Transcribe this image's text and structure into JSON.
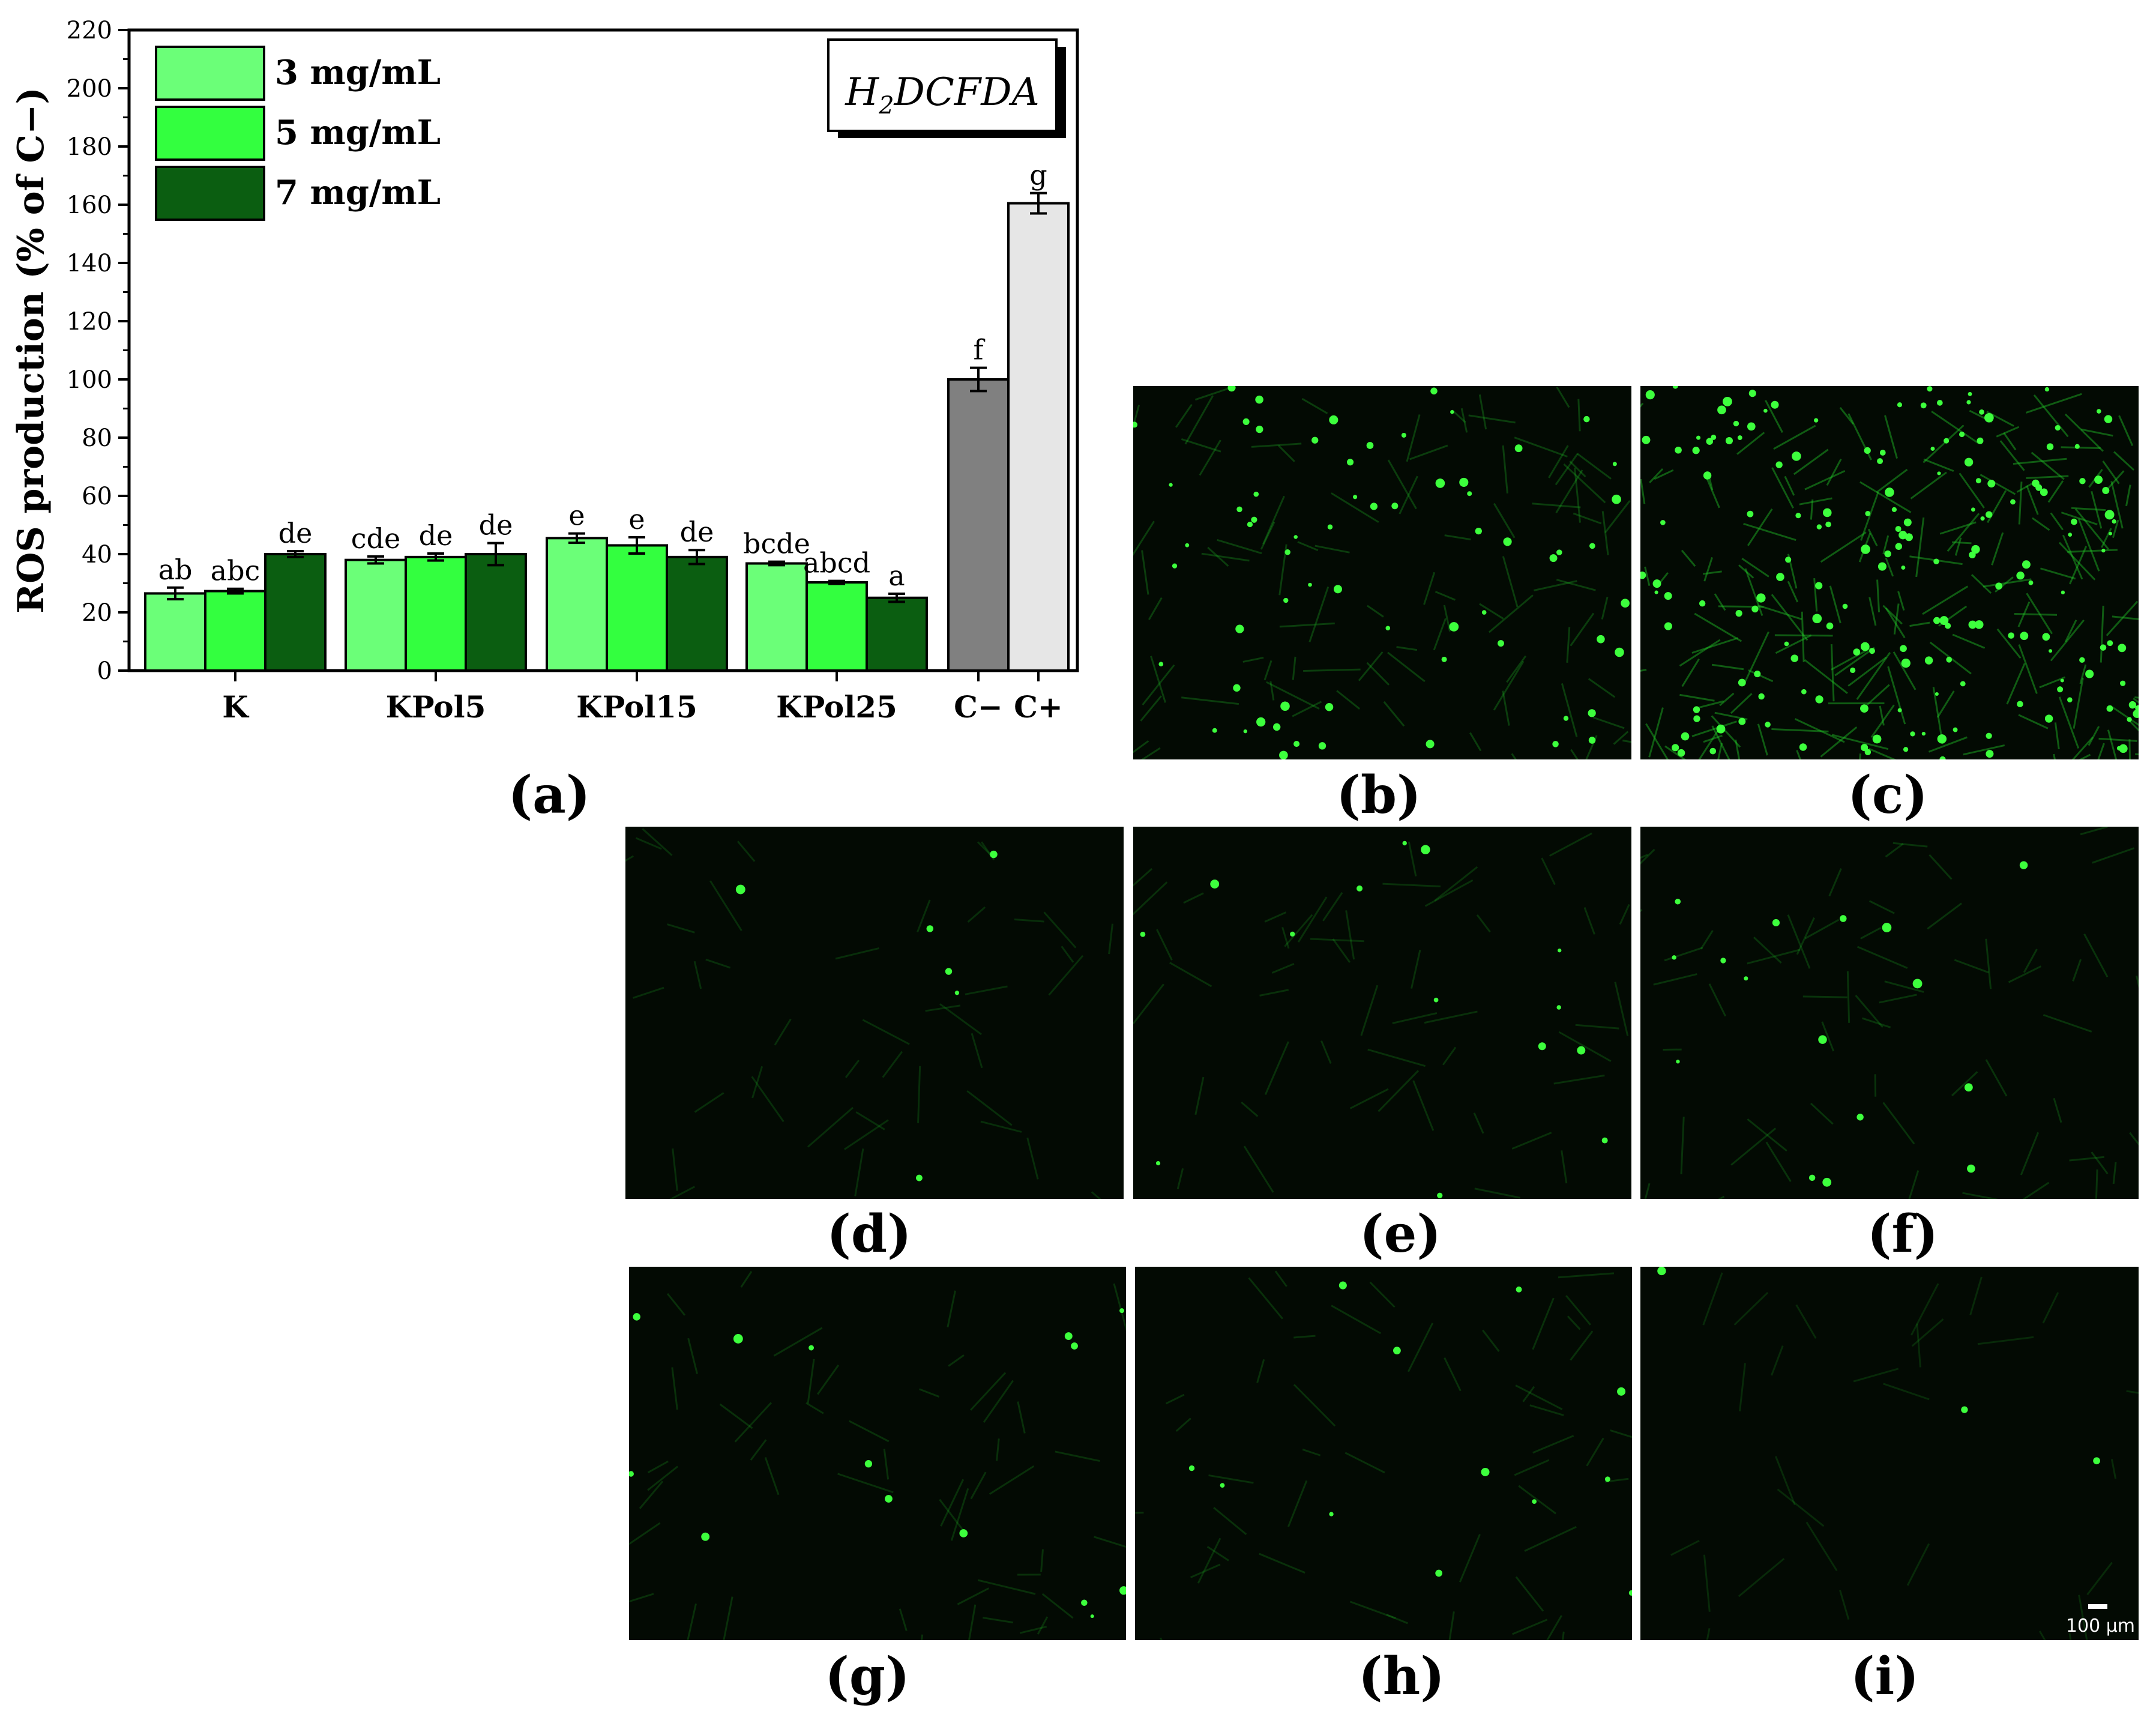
{
  "chart_data": {
    "type": "bar",
    "ylabel": "ROS production (% of C−)",
    "ylim": [
      0,
      220
    ],
    "yticks": [
      0,
      20,
      40,
      60,
      80,
      100,
      120,
      140,
      160,
      180,
      200,
      220
    ],
    "grid": false,
    "legend_position": "top-left",
    "annotation": "H2DCFDA",
    "categories": [
      "K",
      "KPol5",
      "KPol15",
      "KPol25"
    ],
    "series": [
      {
        "name": "3 mg/mL",
        "color": "#6bff78",
        "values": [
          26.5,
          38.0,
          45.5,
          36.8
        ],
        "errors": [
          2.0,
          1.2,
          1.6,
          0.6
        ],
        "letters": [
          "ab",
          "cde",
          "e",
          "bcde"
        ]
      },
      {
        "name": "5 mg/mL",
        "color": "#33ff3f",
        "values": [
          27.3,
          39.0,
          43.0,
          30.3
        ],
        "errors": [
          0.8,
          1.2,
          2.8,
          0.5
        ],
        "letters": [
          "abc",
          "de",
          "e",
          "abcd"
        ]
      },
      {
        "name": "7 mg/mL",
        "color": "#0b5e11",
        "values": [
          40.0,
          40.0,
          39.0,
          25.0
        ],
        "errors": [
          1.0,
          3.8,
          2.4,
          1.4
        ],
        "letters": [
          "de",
          "de",
          "de",
          "a"
        ]
      }
    ],
    "controls": [
      {
        "label": "C−",
        "value": 100.0,
        "error": 4.0,
        "letter": "f",
        "color": "#808080"
      },
      {
        "label": "C+",
        "value": 160.5,
        "error": 3.5,
        "letter": "g",
        "color": "#e6e6e6"
      }
    ]
  },
  "panels": [
    {
      "label": "(a)"
    },
    {
      "label": "(b)",
      "brightness": 0.35,
      "cells": 65
    },
    {
      "label": "(c)",
      "brightness": 0.8,
      "cells": 170
    },
    {
      "label": "(d)",
      "brightness": 0.12,
      "cells": 6
    },
    {
      "label": "(e)",
      "brightness": 0.15,
      "cells": 14
    },
    {
      "label": "(f)",
      "brightness": 0.2,
      "cells": 16
    },
    {
      "label": "(g)",
      "brightness": 0.15,
      "cells": 14
    },
    {
      "label": "(h)",
      "brightness": 0.14,
      "cells": 12
    },
    {
      "label": "(i)",
      "brightness": 0.06,
      "cells": 3
    }
  ],
  "scale_bar": "100 μm"
}
